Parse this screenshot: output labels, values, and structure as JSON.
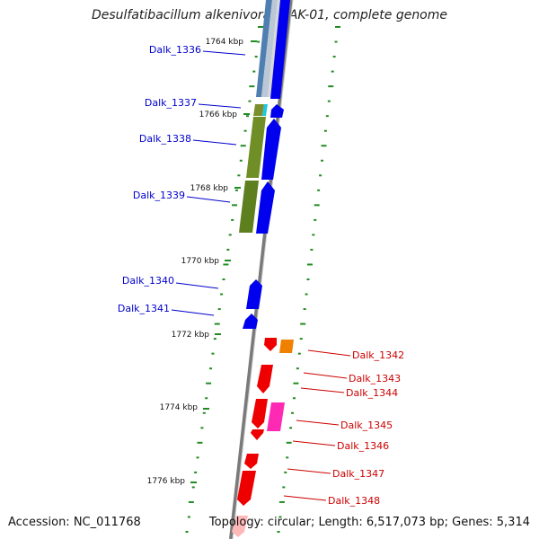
{
  "map": {
    "title": "Desulfatibacillum alkenivorans AK-01, complete genome",
    "accession": "Accession: NC_011768",
    "topology": "Topology: circular; Length: 6,517,073 bp; Genes: 5,314"
  },
  "ticks": [
    "1764 kbp",
    "1766 kbp",
    "1768 kbp",
    "1770 kbp",
    "1772 kbp",
    "1774 kbp",
    "1776 kbp"
  ],
  "genes_forward": [
    "Dalk_1336",
    "Dalk_1337",
    "Dalk_1338",
    "Dalk_1339",
    "Dalk_1340",
    "Dalk_1341"
  ],
  "genes_reverse": [
    "Dalk_1342",
    "Dalk_1343",
    "Dalk_1344",
    "Dalk_1345",
    "Dalk_1346",
    "Dalk_1347",
    "Dalk_1348"
  ],
  "colors": {
    "forward_label": "#0000cc",
    "reverse_label": "#cc0000",
    "forward_gene": "#0000ff",
    "reverse_gene": "#ff0000",
    "tick_dash": "#228b22",
    "backbone": "#888888"
  }
}
